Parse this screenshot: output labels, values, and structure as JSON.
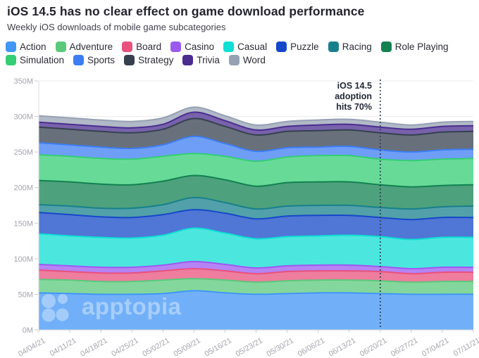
{
  "header": {
    "title": "iOS 14.5 has no clear effect on game download performance",
    "subtitle": "Weekly iOS downloads of mobile game subcategories"
  },
  "annotation": {
    "lines": [
      "iOS 14.5",
      "adoption",
      "hits 70%"
    ],
    "x_category": "06/20/21"
  },
  "watermark": {
    "text": "apptopia"
  },
  "chart_data": {
    "type": "area",
    "stacked": true,
    "title": "iOS 14.5 has no clear effect on game download performance",
    "xlabel": "",
    "ylabel": "",
    "ylim": [
      0,
      350
    ],
    "ytick_step": 50,
    "ytick_suffix": "M",
    "grid": "horizontal",
    "legend_position": "top",
    "fill_opacity": 0.75,
    "annotation_line_category_index": 11,
    "categories": [
      "04/04/21",
      "04/11/21",
      "04/18/21",
      "04/25/21",
      "05/02/21",
      "05/09/21",
      "05/16/21",
      "05/23/21",
      "05/30/21",
      "06/06/21",
      "06/13/21",
      "06/20/21",
      "06/27/21",
      "07/04/21",
      "07/11/21"
    ],
    "series": [
      {
        "name": "Action",
        "color": "#4196F6",
        "values": [
          52,
          51,
          50,
          50,
          51,
          55,
          52,
          50,
          51,
          52,
          52,
          51,
          50,
          50,
          50
        ]
      },
      {
        "name": "Adventure",
        "color": "#5BC97B",
        "values": [
          19,
          19,
          18,
          18,
          19,
          17,
          18,
          17,
          18,
          18,
          18,
          18,
          17,
          18,
          18
        ]
      },
      {
        "name": "Board",
        "color": "#E8517E",
        "values": [
          13,
          12,
          12,
          12,
          13,
          14,
          13,
          12,
          13,
          13,
          13,
          13,
          12,
          13,
          13
        ]
      },
      {
        "name": "Casino",
        "color": "#9C59F0",
        "values": [
          8,
          8,
          8,
          8,
          8,
          10,
          9,
          8,
          8,
          8,
          8,
          7,
          7,
          7,
          7
        ]
      },
      {
        "name": "Casual",
        "color": "#0FDFD4",
        "values": [
          43,
          42,
          42,
          41,
          42,
          47,
          44,
          41,
          41,
          41,
          42,
          42,
          41,
          42,
          42
        ]
      },
      {
        "name": "Puzzle",
        "color": "#1548C8",
        "values": [
          30,
          30,
          29,
          29,
          29,
          26,
          28,
          28,
          29,
          29,
          28,
          27,
          28,
          28,
          28
        ]
      },
      {
        "name": "Racing",
        "color": "#18808C",
        "values": [
          11,
          12,
          12,
          13,
          14,
          17,
          15,
          14,
          14,
          14,
          14,
          14,
          15,
          15,
          16
        ]
      },
      {
        "name": "Role Playing",
        "color": "#128150",
        "values": [
          34,
          34,
          34,
          33,
          33,
          31,
          32,
          32,
          33,
          33,
          33,
          32,
          31,
          30,
          30
        ]
      },
      {
        "name": "Simulation",
        "color": "#35CE75",
        "values": [
          36,
          36,
          36,
          36,
          35,
          31,
          33,
          35,
          36,
          37,
          37,
          36,
          37,
          37,
          37
        ]
      },
      {
        "name": "Sports",
        "color": "#3D7DF3",
        "values": [
          17,
          16,
          16,
          15,
          16,
          24,
          18,
          14,
          13,
          12,
          13,
          13,
          12,
          13,
          13
        ]
      },
      {
        "name": "Strategy",
        "color": "#36404F",
        "values": [
          22,
          22,
          22,
          22,
          22,
          25,
          24,
          23,
          23,
          23,
          23,
          24,
          24,
          25,
          25
        ]
      },
      {
        "name": "Trivia",
        "color": "#4A2D8F",
        "values": [
          7,
          7,
          7,
          7,
          7,
          9,
          8,
          7,
          7,
          8,
          8,
          8,
          8,
          8,
          8
        ]
      },
      {
        "name": "Word",
        "color": "#97A1B4",
        "values": [
          9,
          9,
          9,
          9,
          9,
          7,
          7,
          7,
          7,
          7,
          7,
          7,
          6,
          6,
          6
        ]
      }
    ]
  }
}
